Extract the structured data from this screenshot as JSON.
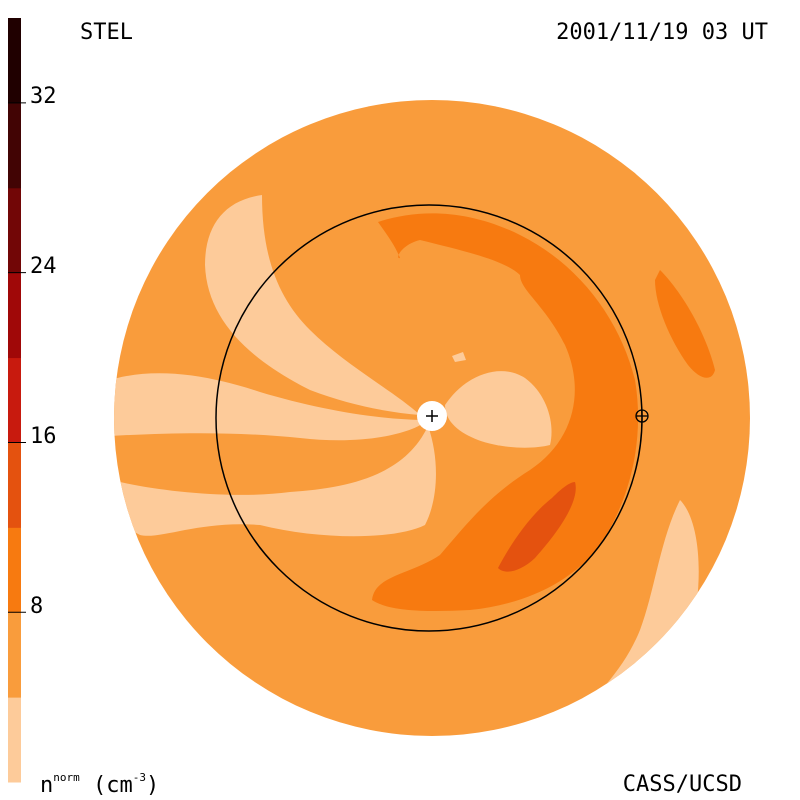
{
  "header": {
    "observatory": "STEL",
    "timestamp": "2001/11/19 03 UT"
  },
  "footer": {
    "quantity": "n",
    "quantity_superscript": "norm",
    "unit_open": "(cm",
    "unit_superscript": "-3",
    "unit_close": ")",
    "credit": "CASS/UCSD"
  },
  "chart_data": {
    "type": "heatmap",
    "title": "",
    "colorbar": {
      "quantity": "normalized density",
      "range": [
        0,
        36
      ],
      "tick_labels": [
        "8",
        "16",
        "24",
        "32"
      ],
      "tick_values": [
        8,
        16,
        24,
        32
      ],
      "levels": [
        {
          "from": 0,
          "to": 4,
          "color": "#fdcb9a"
        },
        {
          "from": 4,
          "to": 8,
          "color": "#f99c3c"
        },
        {
          "from": 8,
          "to": 12,
          "color": "#f77a10"
        },
        {
          "from": 12,
          "to": 16,
          "color": "#e4520f"
        },
        {
          "from": 16,
          "to": 20,
          "color": "#c81a0e"
        },
        {
          "from": 20,
          "to": 24,
          "color": "#a00808"
        },
        {
          "from": 24,
          "to": 28,
          "color": "#720606"
        },
        {
          "from": 28,
          "to": 32,
          "color": "#420404"
        },
        {
          "from": 32,
          "to": 36,
          "color": "#200000"
        }
      ]
    },
    "view": "ecliptic-plane view from above, Sun at center",
    "markers": [
      {
        "name": "Sun",
        "symbol": "plus-in-white-circle",
        "location": "center"
      },
      {
        "name": "Earth",
        "symbol": "circled-plus",
        "location": "on orbit circle, right side"
      }
    ],
    "earth_orbit_circle": true
  },
  "colors": {
    "background": "#ffffff",
    "line": "#000000"
  }
}
